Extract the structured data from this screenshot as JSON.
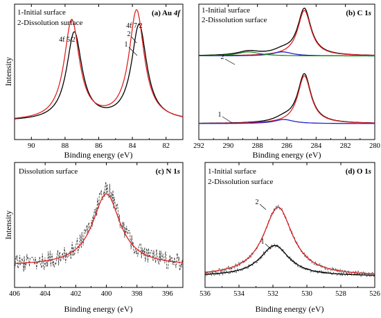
{
  "chart_data": [
    {
      "id": "a",
      "type": "line",
      "title": "(a) Au 4f",
      "title_parts": [
        "(a) Au ",
        "4",
        "f"
      ],
      "xlabel": "Binding energy (eV)",
      "ylabel": "Intensity",
      "xlim": [
        91,
        81
      ],
      "x_ticks": [
        90,
        88,
        86,
        84,
        82
      ],
      "y_ticks": false,
      "legend": [
        "1-Initial surface",
        "2-Dissolution surface"
      ],
      "annotations": [
        "4f 5/2",
        "4f 7/2",
        "2",
        "1"
      ],
      "series": [
        {
          "name": "1",
          "color": "#000000",
          "peaks": [
            {
              "center": 87.45,
              "height": 0.8,
              "width": 0.55
            },
            {
              "center": 83.6,
              "height": 0.87,
              "width": 0.55
            }
          ],
          "baseline": 0.02
        },
        {
          "name": "2",
          "color": "#e02020",
          "peaks": [
            {
              "center": 87.6,
              "height": 0.91,
              "width": 0.55
            },
            {
              "center": 83.75,
              "height": 1.0,
              "width": 0.55
            }
          ],
          "baseline": 0.02
        }
      ]
    },
    {
      "id": "b",
      "type": "line",
      "title": "(b) C 1s",
      "title_parts": [
        "(b) C 1",
        "s"
      ],
      "xlabel": "Binding energy (eV)",
      "xlim": [
        292,
        280
      ],
      "x_ticks": [
        292,
        290,
        288,
        286,
        284,
        282,
        280
      ],
      "y_ticks": false,
      "legend": [
        "1-Initial surface",
        "2-Dissolution surface"
      ],
      "annotations": [
        "2",
        "1"
      ],
      "series": [
        {
          "name": "2 measured",
          "color": "#333333",
          "dashed": true,
          "offset": 0.58,
          "peaks": [
            {
              "center": 284.8,
              "height": 0.4,
              "width": 0.55
            },
            {
              "center": 286.3,
              "height": 0.035,
              "width": 0.8
            },
            {
              "center": 288.6,
              "height": 0.035,
              "width": 0.9
            }
          ]
        },
        {
          "name": "2 fit",
          "color": "#000000",
          "offset": 0.58,
          "peaks": [
            {
              "center": 284.8,
              "height": 0.4,
              "width": 0.55
            },
            {
              "center": 286.3,
              "height": 0.035,
              "width": 0.8
            },
            {
              "center": 288.6,
              "height": 0.035,
              "width": 0.9
            }
          ]
        },
        {
          "name": "2 component C-C",
          "color": "#e02020",
          "offset": 0.58,
          "peaks": [
            {
              "center": 284.8,
              "height": 0.39,
              "width": 0.55
            }
          ]
        },
        {
          "name": "2 component C-O",
          "color": "#2020d0",
          "offset": 0.58,
          "peaks": [
            {
              "center": 286.3,
              "height": 0.035,
              "width": 0.8
            }
          ]
        },
        {
          "name": "2 component O-C=O",
          "color": "#1a8a1a",
          "offset": 0.58,
          "peaks": [
            {
              "center": 288.6,
              "height": 0.035,
              "width": 0.9
            }
          ]
        },
        {
          "name": "1 measured",
          "color": "#333333",
          "dashed": true,
          "offset": 0.0,
          "peaks": [
            {
              "center": 284.8,
              "height": 0.42,
              "width": 0.55
            },
            {
              "center": 286.2,
              "height": 0.035,
              "width": 0.8
            }
          ]
        },
        {
          "name": "1 fit",
          "color": "#000000",
          "offset": 0.0,
          "peaks": [
            {
              "center": 284.8,
              "height": 0.42,
              "width": 0.55
            },
            {
              "center": 286.2,
              "height": 0.035,
              "width": 0.8
            }
          ]
        },
        {
          "name": "1 component C-C",
          "color": "#e02020",
          "offset": 0.0,
          "peaks": [
            {
              "center": 284.8,
              "height": 0.41,
              "width": 0.55
            }
          ]
        },
        {
          "name": "1 component C-O",
          "color": "#2020d0",
          "offset": 0.0,
          "peaks": [
            {
              "center": 286.2,
              "height": 0.035,
              "width": 0.8
            }
          ]
        }
      ]
    },
    {
      "id": "c",
      "type": "line",
      "title": "(c) N 1s",
      "title_parts": [
        "(c) N 1",
        "s"
      ],
      "xlabel": "Binding energy (eV)",
      "ylabel": "Intensity",
      "xlim": [
        406,
        395
      ],
      "x_ticks": [
        406,
        404,
        402,
        400,
        398,
        396
      ],
      "y_ticks": false,
      "legend": [
        "Dissolution surface"
      ],
      "series": [
        {
          "name": "measured",
          "color": "#333333",
          "dashed": true,
          "noise": 0.09,
          "peaks": [
            {
              "center": 400.0,
              "height": 0.78,
              "width": 1.1
            }
          ],
          "baseline": 0.16
        },
        {
          "name": "fit",
          "color": "#e02020",
          "peaks": [
            {
              "center": 400.0,
              "height": 0.72,
              "width": 1.1
            }
          ],
          "baseline": 0.16
        }
      ]
    },
    {
      "id": "d",
      "type": "line",
      "title": "(d) O 1s",
      "title_parts": [
        "(d) O 1",
        "s"
      ],
      "xlabel": "Binding energy (eV)",
      "xlim": [
        536,
        526
      ],
      "x_ticks": [
        536,
        534,
        532,
        530,
        528,
        526
      ],
      "y_ticks": false,
      "legend": [
        "1-Initial surface",
        "2-Dissolution surface"
      ],
      "annotations": [
        "2",
        "1"
      ],
      "series": [
        {
          "name": "2 measured",
          "color": "#333333",
          "dashed": true,
          "noise": 0.02,
          "peaks": [
            {
              "center": 531.7,
              "height": 0.72,
              "width": 1.05
            }
          ],
          "baseline": 0.06
        },
        {
          "name": "2 fit",
          "color": "#e02020",
          "peaks": [
            {
              "center": 531.7,
              "height": 0.72,
              "width": 1.05
            }
          ],
          "baseline": 0.06
        },
        {
          "name": "1 measured",
          "color": "#333333",
          "dashed": true,
          "noise": 0.02,
          "peaks": [
            {
              "center": 531.9,
              "height": 0.32,
              "width": 1.05
            }
          ],
          "baseline": 0.06
        },
        {
          "name": "1 fit",
          "color": "#000000",
          "peaks": [
            {
              "center": 531.9,
              "height": 0.32,
              "width": 1.05
            }
          ],
          "baseline": 0.06
        }
      ]
    }
  ]
}
